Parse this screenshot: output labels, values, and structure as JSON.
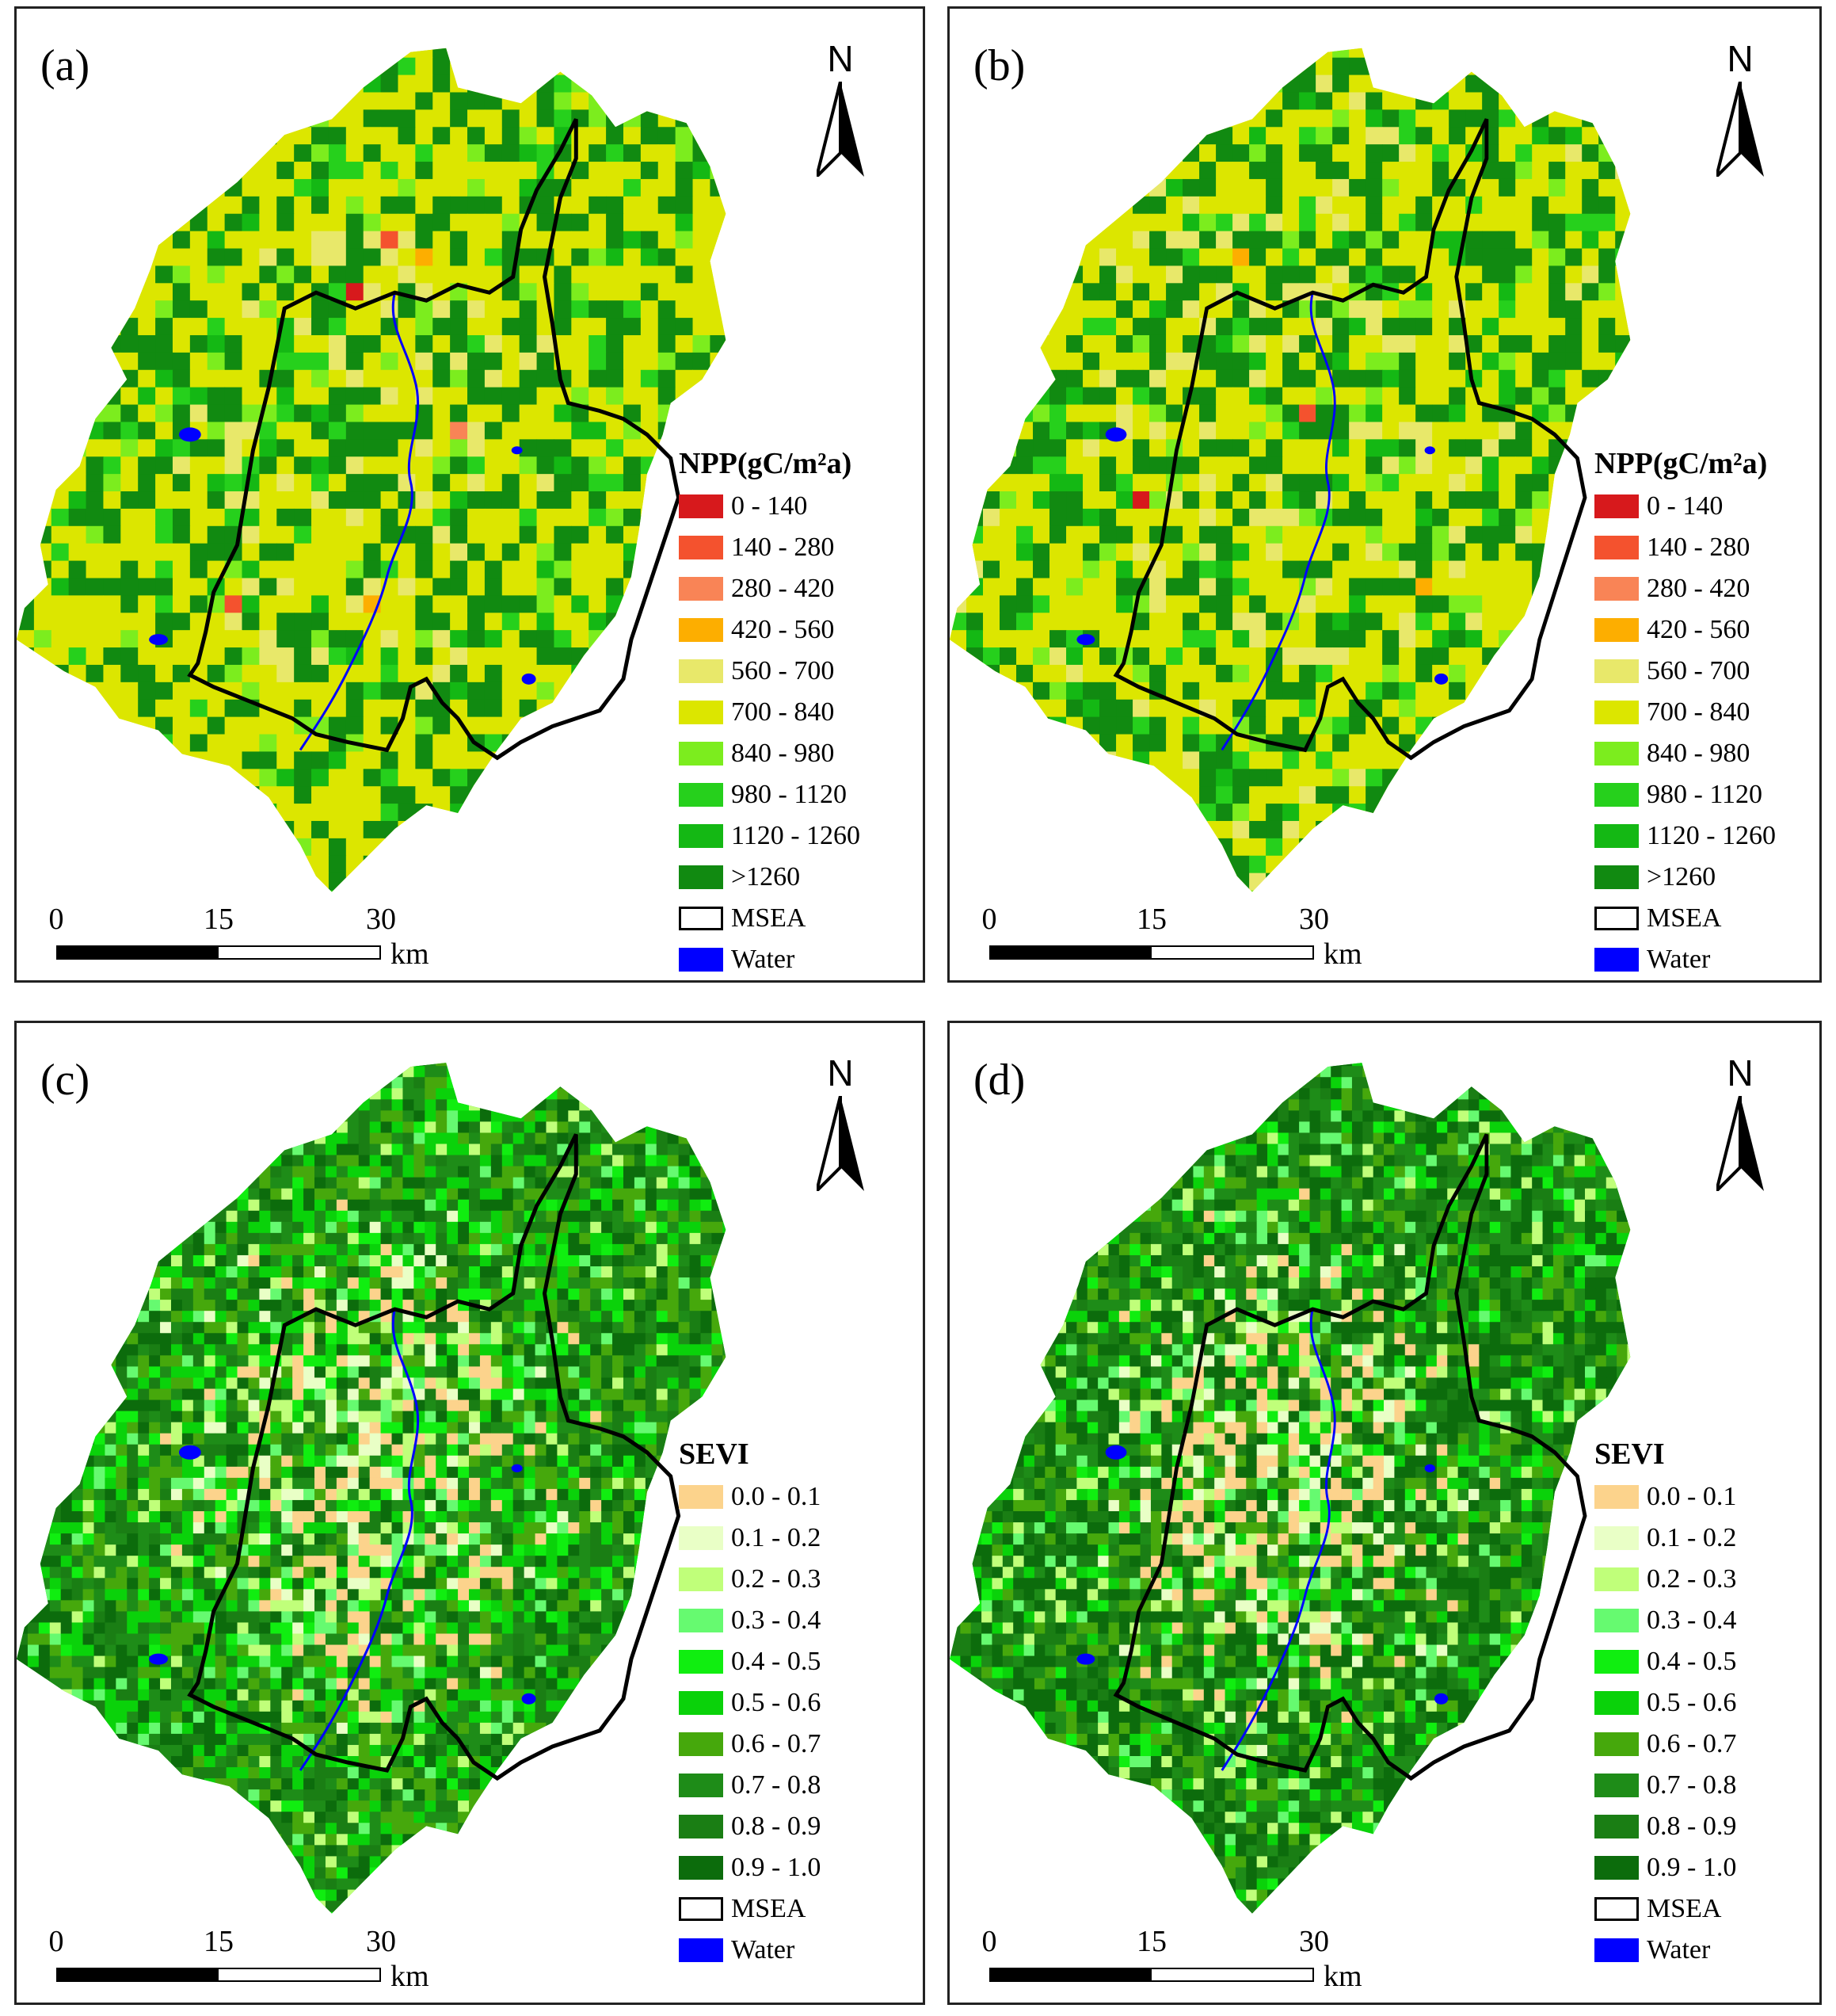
{
  "colors": {
    "npp": [
      "#d7191c",
      "#f4522e",
      "#f98456",
      "#fdae00",
      "#e8e86a",
      "#dce600",
      "#7ced1e",
      "#26d01c",
      "#14b814",
      "#118a11"
    ],
    "sevi": [
      "#fcd38c",
      "#e9ffc6",
      "#c0ff7a",
      "#66fa70",
      "#10ee10",
      "#0ad20a",
      "#46a80c",
      "#1e8c18",
      "#1a7e14",
      "#0c6c0c"
    ],
    "water": "#0000ff",
    "boundary": "#000000"
  },
  "panels": [
    {
      "id": "a",
      "label": "(a)",
      "north": "N",
      "legend": {
        "title": "NPP(gC/m²a)",
        "classes": [
          "0 - 140",
          "140 - 280",
          "280 - 420",
          "420 - 560",
          "560 - 700",
          "700 - 840",
          "840 - 980",
          "980 - 1120",
          "1120 - 1260",
          ">1260"
        ],
        "boundary_label": "MSEA",
        "water_label": "Water"
      },
      "scale": {
        "ticks": [
          "0",
          "15",
          "30"
        ],
        "unit": "km"
      }
    },
    {
      "id": "b",
      "label": "(b)",
      "north": "N",
      "legend": {
        "title": "NPP(gC/m²a)",
        "classes": [
          "0 - 140",
          "140 - 280",
          "280 - 420",
          "420 - 560",
          "560 - 700",
          "700 - 840",
          "840 - 980",
          "980 - 1120",
          "1120 - 1260",
          ">1260"
        ],
        "boundary_label": "MSEA",
        "water_label": "Water"
      },
      "scale": {
        "ticks": [
          "0",
          "15",
          "30"
        ],
        "unit": "km"
      }
    },
    {
      "id": "c",
      "label": "(c)",
      "north": "N",
      "legend": {
        "title": "SEVI",
        "classes": [
          "0.0 - 0.1",
          "0.1 - 0.2",
          "0.2 - 0.3",
          "0.3 - 0.4",
          "0.4 - 0.5",
          "0.5 - 0.6",
          "0.6 - 0.7",
          "0.7 - 0.8",
          "0.8 - 0.9",
          "0.9 - 1.0"
        ],
        "boundary_label": "MSEA",
        "water_label": "Water"
      },
      "scale": {
        "ticks": [
          "0",
          "15",
          "30"
        ],
        "unit": "km"
      }
    },
    {
      "id": "d",
      "label": "(d)",
      "north": "N",
      "legend": {
        "title": "SEVI",
        "classes": [
          "0.0 - 0.1",
          "0.1 - 0.2",
          "0.2 - 0.3",
          "0.3 - 0.4",
          "0.4 - 0.5",
          "0.5 - 0.6",
          "0.6 - 0.7",
          "0.7 - 0.8",
          "0.8 - 0.9",
          "0.9 - 1.0"
        ],
        "boundary_label": "MSEA",
        "water_label": "Water"
      },
      "scale": {
        "ticks": [
          "0",
          "15",
          "30"
        ],
        "unit": "km"
      }
    }
  ]
}
